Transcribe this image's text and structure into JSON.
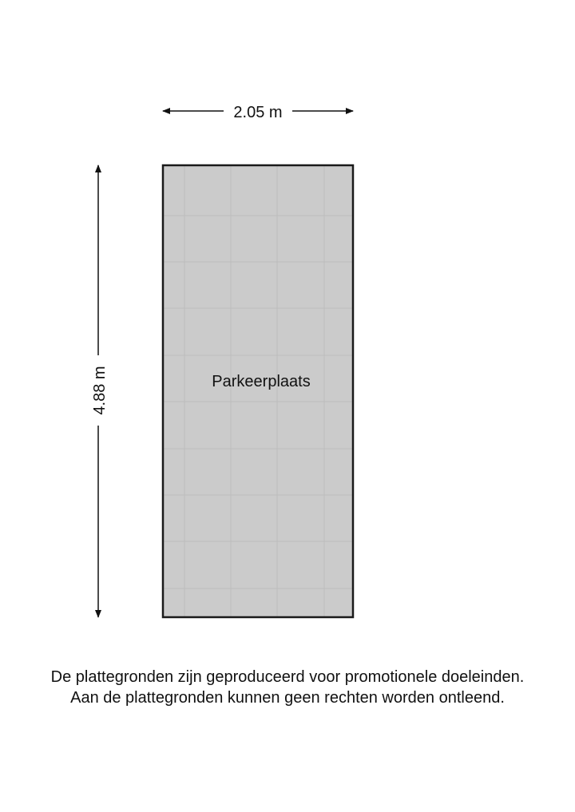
{
  "plan": {
    "room_label": "Parkeerplaats",
    "width_label": "2.05 m",
    "height_label": "4.88 m",
    "fill_color": "#cbcbcb",
    "outline_color": "#1a1a1a"
  },
  "disclaimer": {
    "line1": "De plattegronden zijn geproduceerd voor promotionele doeleinden.",
    "line2": "Aan de plattegronden kunnen geen rechten worden ontleend."
  }
}
